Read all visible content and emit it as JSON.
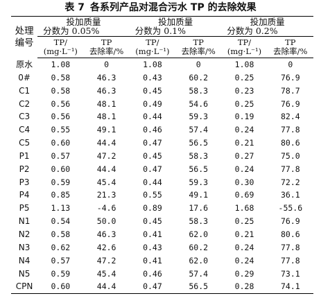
{
  "caption": {
    "label": "表 7",
    "title": "各系列产品对混合污水 TP 的去除效果"
  },
  "header": {
    "id_col": [
      "处理",
      "编号"
    ],
    "groups": [
      {
        "line1": "投加质量",
        "line2": "分数为 0.05%"
      },
      {
        "line1": "投加质量",
        "line2": "分数为 0.1%"
      },
      {
        "line1": "投加质量",
        "line2": "分数为 0.2%"
      }
    ],
    "sub": {
      "tp_line1": "TP/",
      "tp_line2": "(mg·L⁻¹)",
      "rate_line1": "TP",
      "rate_line2": "去除率/%"
    }
  },
  "rows": [
    {
      "id": "原水",
      "v": [
        "1.08",
        "0",
        "1.08",
        "0",
        "1.08",
        "0"
      ]
    },
    {
      "id": "0#",
      "v": [
        "0.58",
        "46.3",
        "0.43",
        "60.2",
        "0.25",
        "76.9"
      ]
    },
    {
      "id": "C1",
      "v": [
        "0.58",
        "46.3",
        "0.45",
        "58.3",
        "0.23",
        "78.7"
      ]
    },
    {
      "id": "C2",
      "v": [
        "0.56",
        "48.1",
        "0.49",
        "54.6",
        "0.25",
        "76.9"
      ]
    },
    {
      "id": "C3",
      "v": [
        "0.56",
        "48.1",
        "0.44",
        "59.3",
        "0.19",
        "82.4"
      ]
    },
    {
      "id": "C4",
      "v": [
        "0.55",
        "49.1",
        "0.46",
        "57.4",
        "0.24",
        "77.8"
      ]
    },
    {
      "id": "C5",
      "v": [
        "0.60",
        "44.4",
        "0.47",
        "56.5",
        "0.21",
        "80.6"
      ]
    },
    {
      "id": "P1",
      "v": [
        "0.57",
        "47.2",
        "0.45",
        "58.3",
        "0.27",
        "75.0"
      ]
    },
    {
      "id": "P2",
      "v": [
        "0.60",
        "44.4",
        "0.47",
        "56.5",
        "0.24",
        "77.8"
      ]
    },
    {
      "id": "P3",
      "v": [
        "0.59",
        "45.4",
        "0.44",
        "59.3",
        "0.30",
        "72.2"
      ]
    },
    {
      "id": "P4",
      "v": [
        "0.85",
        "21.3",
        "0.55",
        "49.1",
        "0.69",
        "36.1"
      ]
    },
    {
      "id": "P5",
      "v": [
        "1.13",
        "-4.6",
        "0.89",
        "17.6",
        "1.68",
        "-55.6"
      ]
    },
    {
      "id": "N1",
      "v": [
        "0.54",
        "50.0",
        "0.45",
        "58.3",
        "0.25",
        "76.9"
      ]
    },
    {
      "id": "N2",
      "v": [
        "0.58",
        "46.3",
        "0.41",
        "62.0",
        "0.21",
        "80.6"
      ]
    },
    {
      "id": "N3",
      "v": [
        "0.62",
        "42.6",
        "0.43",
        "60.2",
        "0.24",
        "77.8"
      ]
    },
    {
      "id": "N4",
      "v": [
        "0.57",
        "47.2",
        "0.41",
        "62.0",
        "0.24",
        "77.8"
      ]
    },
    {
      "id": "N5",
      "v": [
        "0.59",
        "45.4",
        "0.46",
        "57.4",
        "0.29",
        "73.1"
      ]
    },
    {
      "id": "CPN",
      "v": [
        "0.60",
        "44.4",
        "0.47",
        "56.5",
        "0.28",
        "74.1"
      ]
    }
  ]
}
